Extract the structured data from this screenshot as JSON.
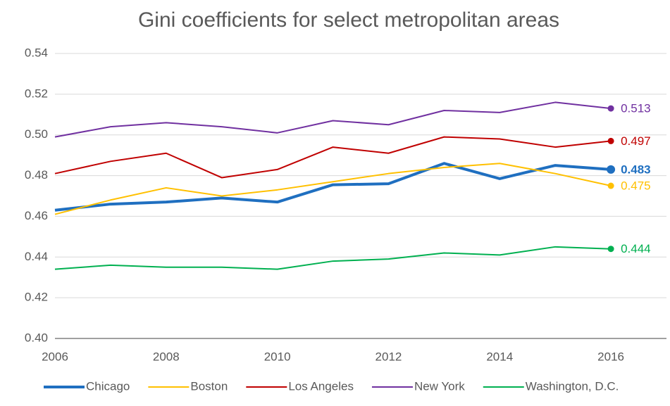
{
  "chart_data": {
    "type": "line",
    "title": "Gini coefficients for select metropolitan areas",
    "x": [
      2006,
      2007,
      2008,
      2009,
      2010,
      2011,
      2012,
      2013,
      2014,
      2015,
      2016
    ],
    "series": [
      {
        "name": "Chicago",
        "color": "#1f6fc0",
        "values": [
          0.463,
          0.466,
          0.467,
          0.469,
          0.467,
          0.4755,
          0.476,
          0.486,
          0.4785,
          0.485,
          0.483
        ],
        "value_labels": [
          null,
          null,
          null,
          null,
          null,
          null,
          null,
          null,
          null,
          null,
          "0.483"
        ]
      },
      {
        "name": "Boston",
        "color": "#ffc000",
        "values": [
          0.461,
          0.468,
          0.474,
          0.47,
          0.473,
          0.477,
          0.481,
          0.484,
          0.486,
          0.481,
          0.475
        ],
        "value_labels": [
          null,
          null,
          null,
          null,
          null,
          null,
          null,
          null,
          null,
          null,
          "0.475"
        ]
      },
      {
        "name": "Los Angeles",
        "color": "#c00000",
        "values": [
          0.481,
          0.487,
          0.491,
          0.479,
          0.483,
          0.494,
          0.491,
          0.499,
          0.498,
          0.494,
          0.497
        ],
        "value_labels": [
          null,
          null,
          null,
          null,
          null,
          null,
          null,
          null,
          null,
          null,
          "0.497"
        ]
      },
      {
        "name": "New York",
        "color": "#7030a0",
        "values": [
          0.499,
          0.504,
          0.506,
          0.504,
          0.501,
          0.507,
          0.505,
          0.512,
          0.511,
          0.516,
          0.513
        ],
        "value_labels": [
          null,
          null,
          null,
          null,
          null,
          null,
          null,
          null,
          null,
          null,
          "0.513"
        ]
      },
      {
        "name": "Washington, D.C.",
        "color": "#00b050",
        "values": [
          0.434,
          0.436,
          0.435,
          0.435,
          0.434,
          0.438,
          0.439,
          0.442,
          0.441,
          0.445,
          0.444
        ],
        "value_labels": [
          null,
          null,
          null,
          null,
          null,
          null,
          null,
          null,
          null,
          null,
          "0.444"
        ]
      }
    ],
    "xlim": [
      2006,
      2017
    ],
    "xticks": [
      2006,
      2008,
      2010,
      2012,
      2014,
      2016
    ],
    "ylim": [
      0.4,
      0.54
    ],
    "yticks": [
      {
        "value": 0.4,
        "label": "0.40"
      },
      0.42,
      0.44,
      0.46,
      0.48,
      {
        "value": 0.5,
        "label": "0.50"
      },
      0.52,
      0.54
    ],
    "grid": true,
    "legend": "bottom"
  }
}
